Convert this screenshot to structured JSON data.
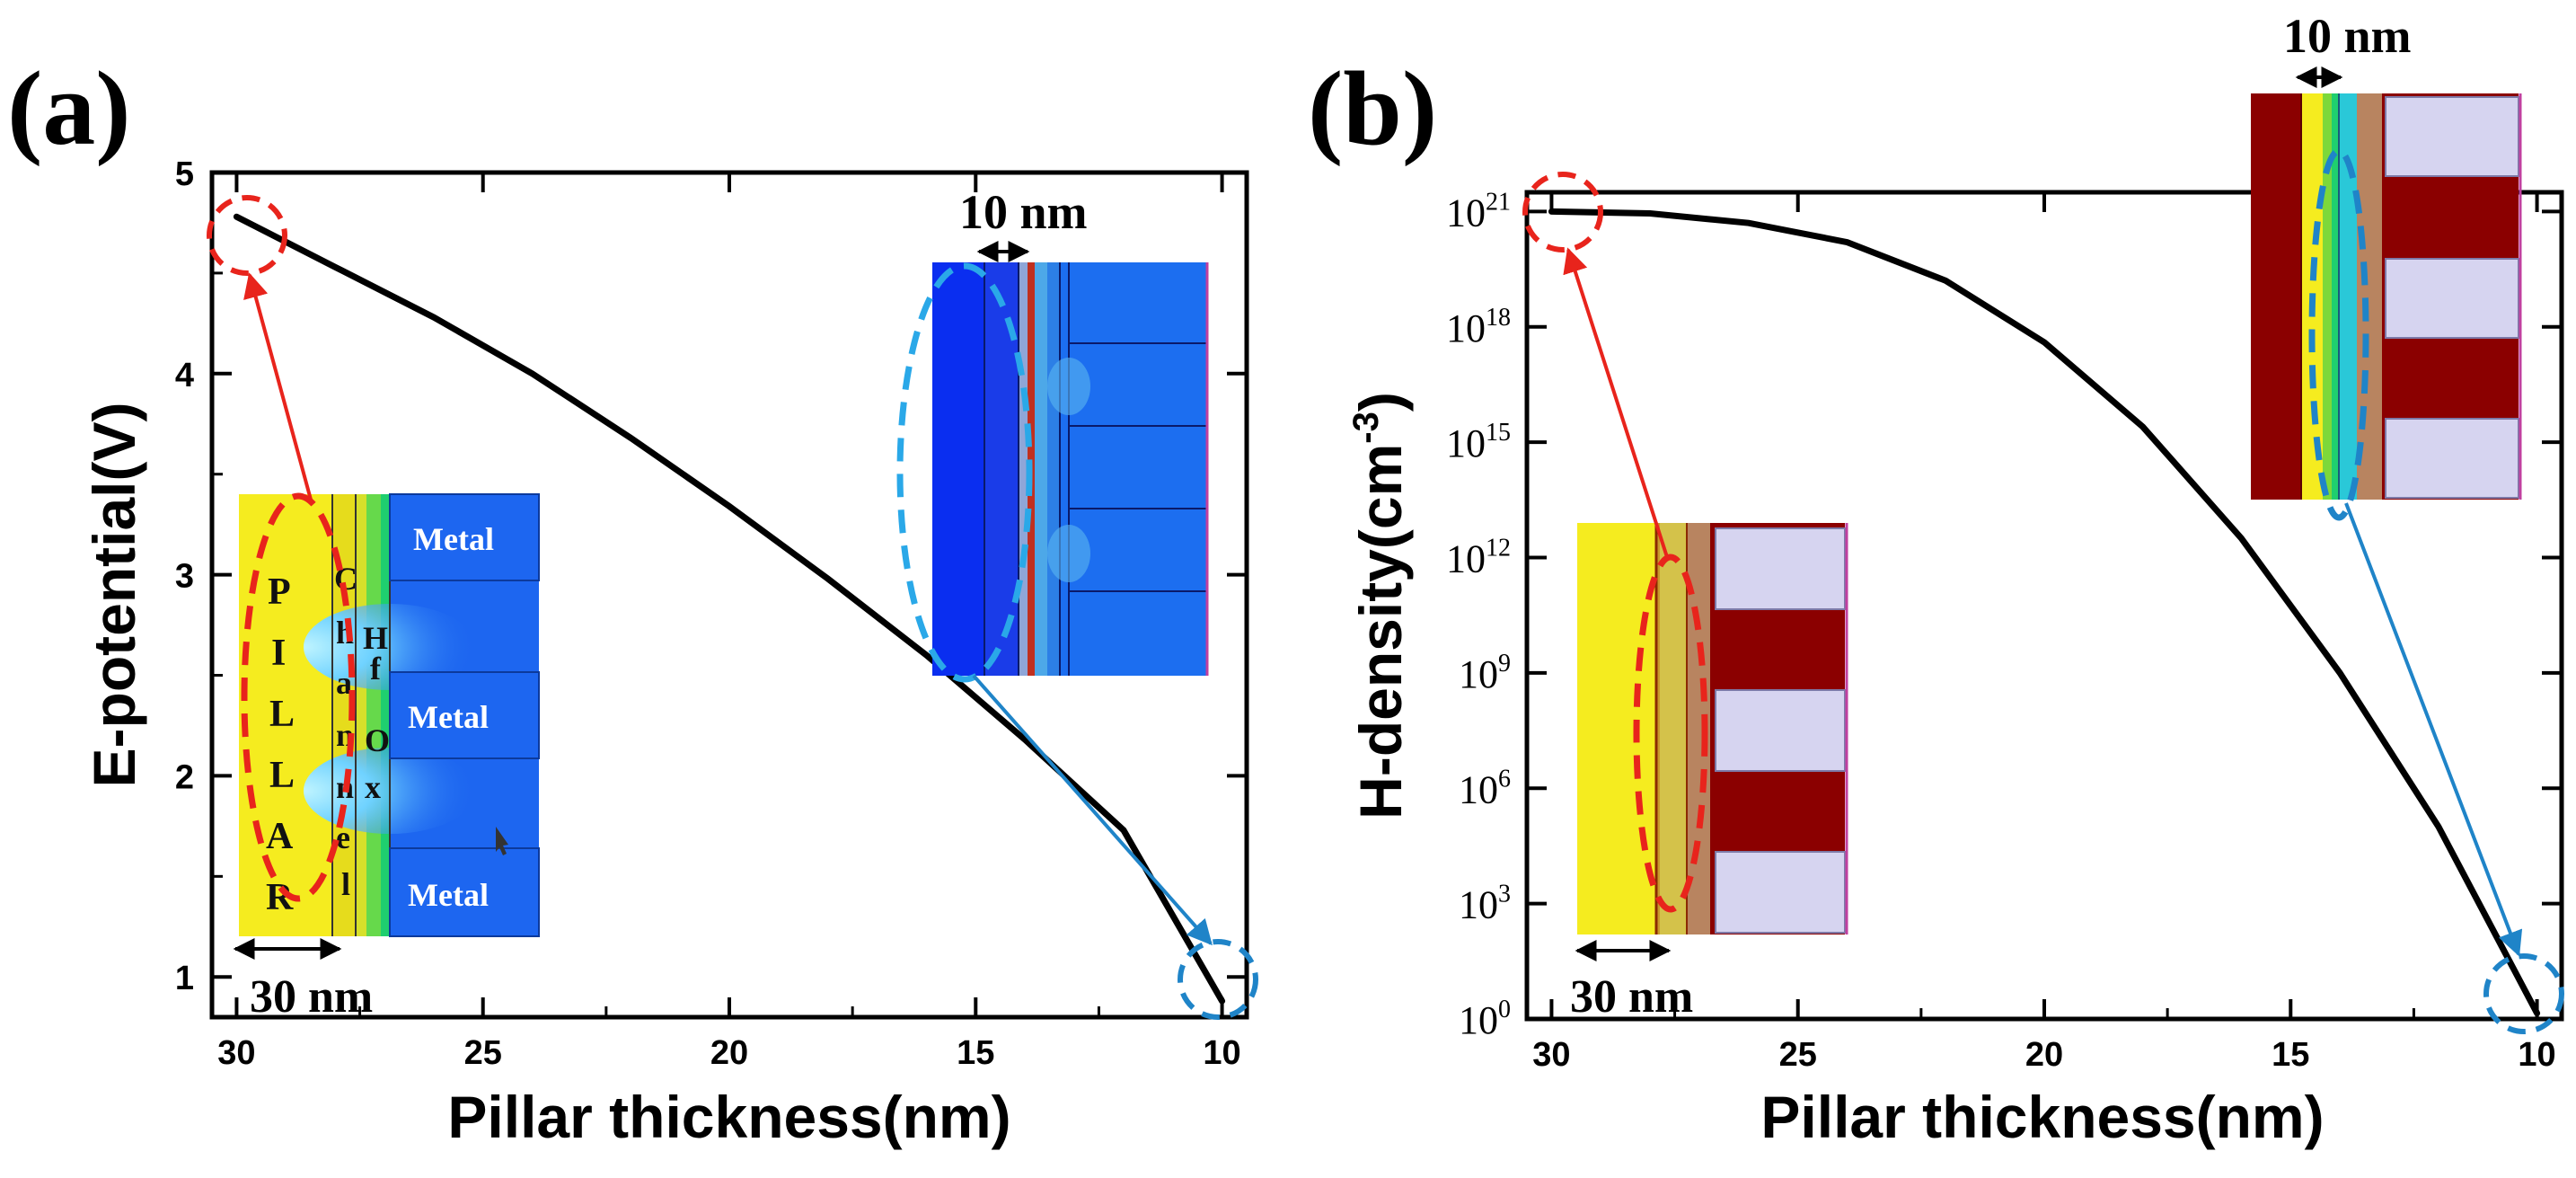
{
  "chart_data": [
    {
      "panel": "(a)",
      "type": "line",
      "title": "",
      "xlabel": "Pillar thickness(nm)",
      "ylabel": "E-potential(V)",
      "xlim": [
        30.5,
        9.5
      ],
      "ylim": [
        0.8,
        5.0
      ],
      "x_ticks": [
        30,
        25,
        20,
        15,
        10
      ],
      "x_tick_labels": [
        "30",
        "25",
        "20",
        "15",
        "10"
      ],
      "y_ticks": [
        1,
        2,
        3,
        4,
        5
      ],
      "y_tick_labels": [
        "1",
        "2",
        "3",
        "4",
        "5"
      ],
      "series": [
        {
          "name": "E-potential",
          "color": "#000000",
          "x": [
            30,
            28,
            26,
            24,
            22,
            20,
            18,
            16,
            14,
            12,
            10
          ],
          "y": [
            4.78,
            4.53,
            4.28,
            4.0,
            3.68,
            3.34,
            2.98,
            2.6,
            2.18,
            1.73,
            0.88
          ]
        }
      ],
      "annotations": {
        "inset_left_scale": "30 nm",
        "inset_left_pillar_letters": [
          "P",
          "I",
          "L",
          "L",
          "A",
          "R"
        ],
        "inset_left_channel_letters": [
          "C",
          "h",
          "a",
          "n",
          "n",
          "e",
          "l"
        ],
        "inset_left_oxide_letters": [
          "H",
          "f",
          "O",
          "x"
        ],
        "inset_left_metal_labels": [
          "Metal",
          "Metal",
          "Metal"
        ],
        "inset_right_scale": "10 nm",
        "start_marker": "red-circle",
        "end_marker": "blue-circle"
      }
    },
    {
      "panel": "(b)",
      "type": "line",
      "title": "",
      "xlabel": "Pillar thickness(nm)",
      "ylabel": "H-density(cm",
      "ylabel_sup": "-3",
      "ylabel_close": ")",
      "xlim": [
        30.5,
        9.5
      ],
      "ylim_log10": [
        0,
        21.5
      ],
      "yscale": "log",
      "x_ticks": [
        30,
        25,
        20,
        15,
        10
      ],
      "x_tick_labels": [
        "30",
        "25",
        "20",
        "15",
        "10"
      ],
      "y_ticks_log10": [
        0,
        3,
        6,
        9,
        12,
        15,
        18,
        21
      ],
      "y_tick_base": "10",
      "y_tick_exponents": [
        "0",
        "3",
        "6",
        "9",
        "12",
        "15",
        "18",
        "21"
      ],
      "series": [
        {
          "name": "H-density",
          "color": "#000000",
          "x": [
            30,
            28,
            26,
            24,
            22,
            20,
            18,
            16,
            14,
            12,
            10
          ],
          "y_log10": [
            21.0,
            20.95,
            20.7,
            20.2,
            19.2,
            17.6,
            15.4,
            12.5,
            9.0,
            5.0,
            0.15
          ]
        }
      ],
      "annotations": {
        "inset_left_scale": "30 nm",
        "inset_right_scale": "10 nm",
        "start_marker": "red-circle",
        "end_marker": "blue-circle"
      }
    }
  ],
  "colors": {
    "red": "#e8241c",
    "blue_arrow": "#1f84c8",
    "cyan_dash": "#2aa8e8",
    "yellow": "#f5ec1f",
    "metal_blue": "#1d66f0",
    "dark_red": "#8b0000",
    "lavender": "#d6d4f0",
    "tan": "#b88460"
  }
}
